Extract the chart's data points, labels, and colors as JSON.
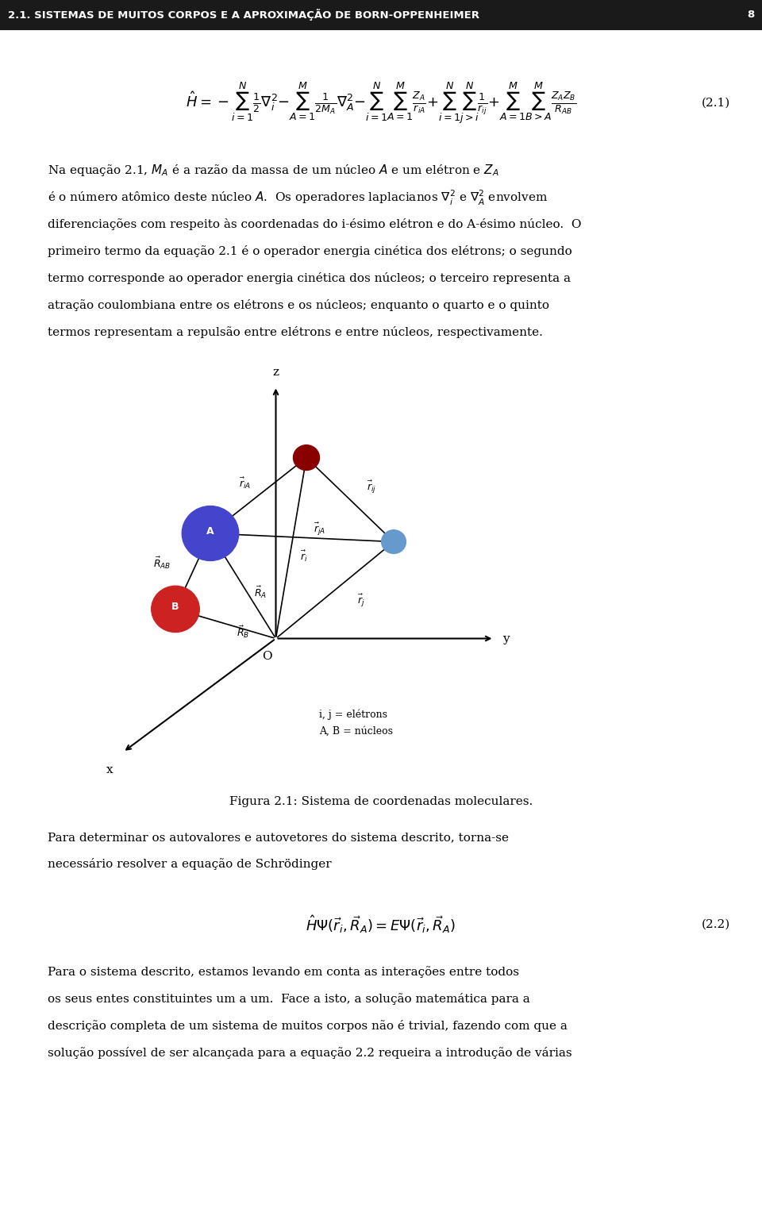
{
  "title": "2.1. SISTEMAS DE MUITOS CORPOS E A APROXIMAÇÃO DE BORN-OPPENHEIMER",
  "page_number": "8",
  "background_color": "#ffffff",
  "text_color": "#000000",
  "header_line_color": "#000000",
  "title_fontsize": 10,
  "body_fontsize": 11,
  "equation_21": "$\\hat{H} = -\\displaystyle\\sum_{i=1}^{N}\\frac{1}{2}\\nabla_i^2 - \\displaystyle\\sum_{A=1}^{M}\\frac{1}{2M_A}\\nabla_A^2 - \\displaystyle\\sum_{i=1}^{N}\\displaystyle\\sum_{A=1}^{M}\\frac{Z_A}{r_{iA}} + \\displaystyle\\sum_{i=1}^{N}\\displaystyle\\sum_{j>i}^{N}\\frac{1}{r_{ij}} + \\displaystyle\\sum_{A=1}^{M}\\displaystyle\\sum_{B>A}^{M}\\frac{Z_A Z_B}{R_{AB}}$",
  "eq21_label": "(2.1)",
  "paragraph1": "Na equação 2.1, $M_A$ é a razão da massa de um núcleo $A$ e um elétron e $Z_A$ é o número atômico deste núcleo $A$. Os operadores laplacianos $\\nabla_i^2$ e $\\nabla_A^2$ envolvem diferenciações com respeito às coordenadas do i-ésimo elétron e do A-ésimo núcleo. O primeiro termo da equação 2.1 é o operador energia cinética dos elétrons; o segundo termo corresponde ao operador energia cinética dos núcleos; o terceiro representa a atração coulombiana entre os elétrons e os núcleos; enquanto o quarto e o quinto termos representam a repulsão entre elétrons e entre núcleos, respectivamente.",
  "figure_caption": "Figura 2.1: Sistema de coordenadas moleculares.",
  "paragraph2": "Para determinar os autovalores e autovetores do sistema descrito, torna-se necessário resolver a equação de Schrödinger",
  "equation_22": "$\\hat{H}\\Psi(\\vec{r}_i, \\vec{R}_A) = E\\Psi(\\vec{r}_i, \\vec{R}_A)$",
  "eq22_label": "(2.2)",
  "paragraph3": "Para o sistema descrito, estamos levando em conta as interações entre todos os seus entes constituintes um a um. Face a isto, a solução matemática para a descrição completa de um sistema de muitos corpos não é trivial, fazendo com que a solução possível de ser alcançada para a equação 2.2 requeira a introdução de várias"
}
